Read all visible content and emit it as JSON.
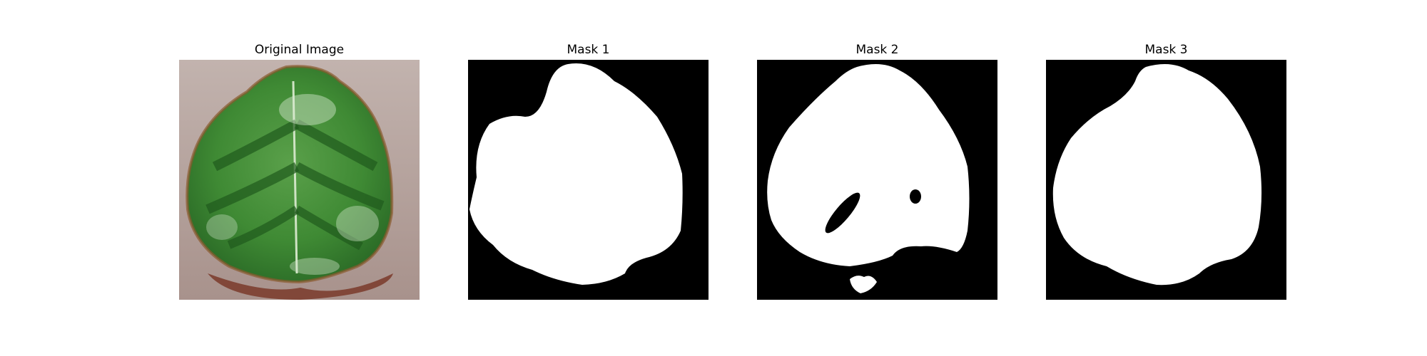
{
  "figure": {
    "panels": [
      {
        "title": "Original Image",
        "kind": "photo"
      },
      {
        "title": "Mask 1",
        "kind": "mask"
      },
      {
        "title": "Mask 2",
        "kind": "mask"
      },
      {
        "title": "Mask 3",
        "kind": "mask"
      }
    ]
  },
  "colors": {
    "mask_foreground": "#ffffff",
    "mask_background": "#000000",
    "leaf_green": "#3f8a34",
    "leaf_dark": "#1f5a1c",
    "ground": "#b4a39f",
    "shadow": "#7a3a2a"
  }
}
